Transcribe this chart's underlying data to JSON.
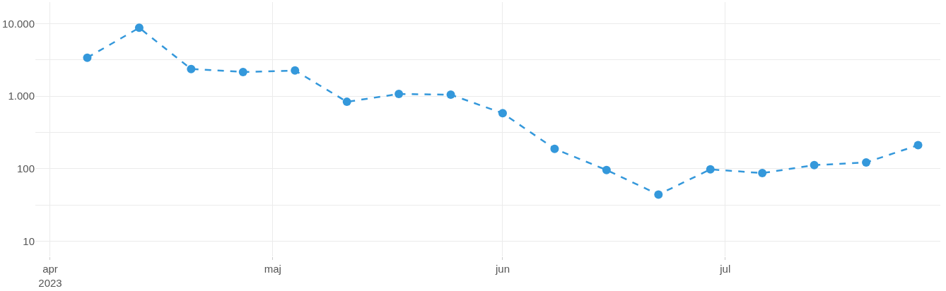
{
  "chart_data": {
    "type": "line",
    "log": true,
    "grid": true,
    "marker": "circle",
    "line_style": "dashed",
    "x": [
      "2023-04-06",
      "2023-04-13",
      "2023-04-20",
      "2023-04-27",
      "2023-05-04",
      "2023-05-11",
      "2023-05-18",
      "2023-05-25",
      "2023-06-01",
      "2023-06-08",
      "2023-06-15",
      "2023-06-22",
      "2023-06-29",
      "2023-07-06",
      "2023-07-13",
      "2023-07-20",
      "2023-07-27"
    ],
    "series": [
      {
        "color": "#3498db",
        "values": [
          3380,
          8730,
          2360,
          2150,
          2250,
          835,
          1070,
          1045,
          582,
          188,
          96,
          44,
          98,
          87,
          112,
          122,
          211
        ]
      }
    ],
    "xlim": [
      "2023-03-30",
      "2023-07-30"
    ],
    "xticks": [
      {
        "value": "2023-04-01",
        "label": "apr\n2023"
      },
      {
        "value": "2023-05-01",
        "label": "maj"
      },
      {
        "value": "2023-06-01",
        "label": "jun"
      },
      {
        "value": "2023-07-01",
        "label": "jul"
      }
    ],
    "ylim": [
      6.2,
      19700
    ],
    "yticks": [
      10,
      {
        "value": 31.6,
        "label": null
      },
      {
        "value": 100,
        "label": "100"
      },
      {
        "value": 316,
        "label": null
      },
      {
        "value": 1000,
        "label": "1.000"
      },
      {
        "value": 3162,
        "label": null
      },
      {
        "value": 10000,
        "label": "10.000"
      }
    ]
  }
}
